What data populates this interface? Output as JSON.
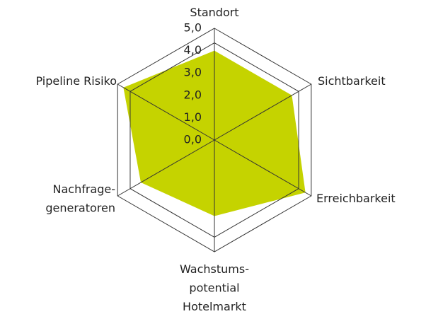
{
  "chart_data": {
    "type": "radar",
    "categories": [
      [
        "Standort"
      ],
      [
        "Sichtbarkeit"
      ],
      [
        "Erreichbarkeit"
      ],
      [
        "Wachstums-",
        "potential",
        "Hotelmarkt"
      ],
      [
        "Nachfrage-",
        "generatoren"
      ],
      [
        "Pipeline Risiko"
      ]
    ],
    "values": [
      4.0,
      4.0,
      4.7,
      3.4,
      3.8,
      4.7
    ],
    "color": "#c5d300",
    "ylim": [
      0,
      5
    ],
    "yticks": [
      {
        "value": 0,
        "label": "0,0"
      },
      {
        "value": 1,
        "label": "1,0"
      },
      {
        "value": 2,
        "label": "2,0"
      },
      {
        "value": 3,
        "label": "3,0"
      },
      {
        "value": 4,
        "label": "4,0"
      },
      {
        "value": 5,
        "label": "5,0"
      }
    ]
  }
}
